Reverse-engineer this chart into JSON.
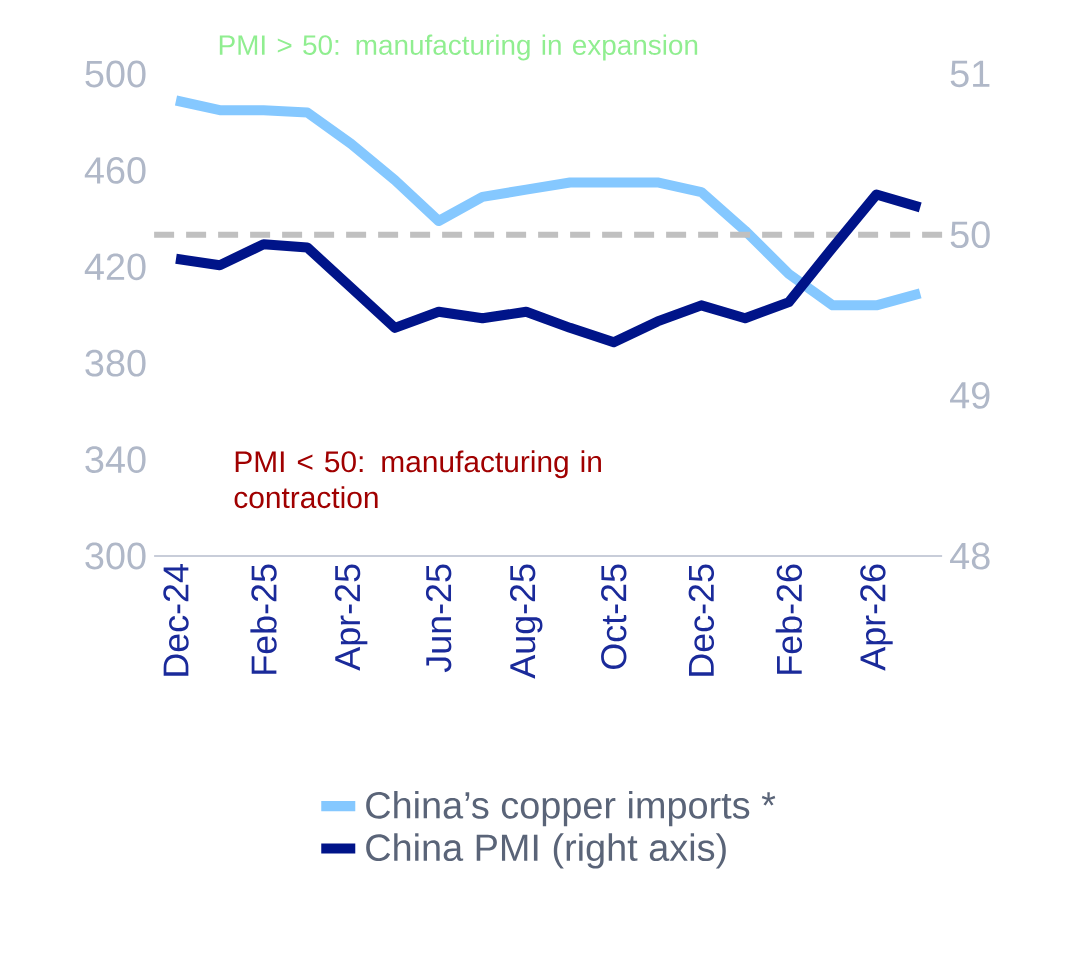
{
  "chart_data": {
    "type": "line",
    "categories": [
      "Dec-24",
      null,
      "Feb-25",
      null,
      "Apr-25",
      null,
      "Jun-25",
      null,
      "Aug-25",
      null,
      "Oct-25",
      null,
      "Dec-25",
      null,
      "Feb-26",
      null,
      "Apr-26",
      null
    ],
    "series": [
      {
        "name": "China’s copper imports *",
        "color": "#85c8ff",
        "values": [
          489,
          485,
          485,
          484,
          471,
          456,
          439,
          449,
          452,
          455,
          455,
          455,
          451,
          435,
          417,
          404,
          404,
          409
        ]
      },
      {
        "name": "China PMI (right axis)",
        "color": "#001489",
        "axis": "y2",
        "values": [
          49.85,
          49.81,
          49.94,
          49.92,
          49.67,
          49.42,
          49.52,
          49.48,
          49.52,
          49.42,
          49.33,
          49.46,
          49.56,
          49.48,
          49.58,
          49.92,
          50.25,
          50.17
        ]
      }
    ],
    "ylim": [
      300,
      500
    ],
    "yticks": [
      300,
      340,
      380,
      420,
      460,
      500
    ],
    "y2lim": [
      48,
      51
    ],
    "y2ticks": [
      48,
      49,
      50,
      51
    ],
    "ref_lines": [
      {
        "axis": "y2",
        "value": 50,
        "color": "#c0c0c0",
        "line_style": "dashed"
      }
    ],
    "annotations": [
      "PMI > 50: manufacturing in expansion",
      "PMI < 50: manufacturing in contraction"
    ],
    "legend": "bottom",
    "grid": false,
    "marker": "none",
    "line_style": "solid"
  }
}
